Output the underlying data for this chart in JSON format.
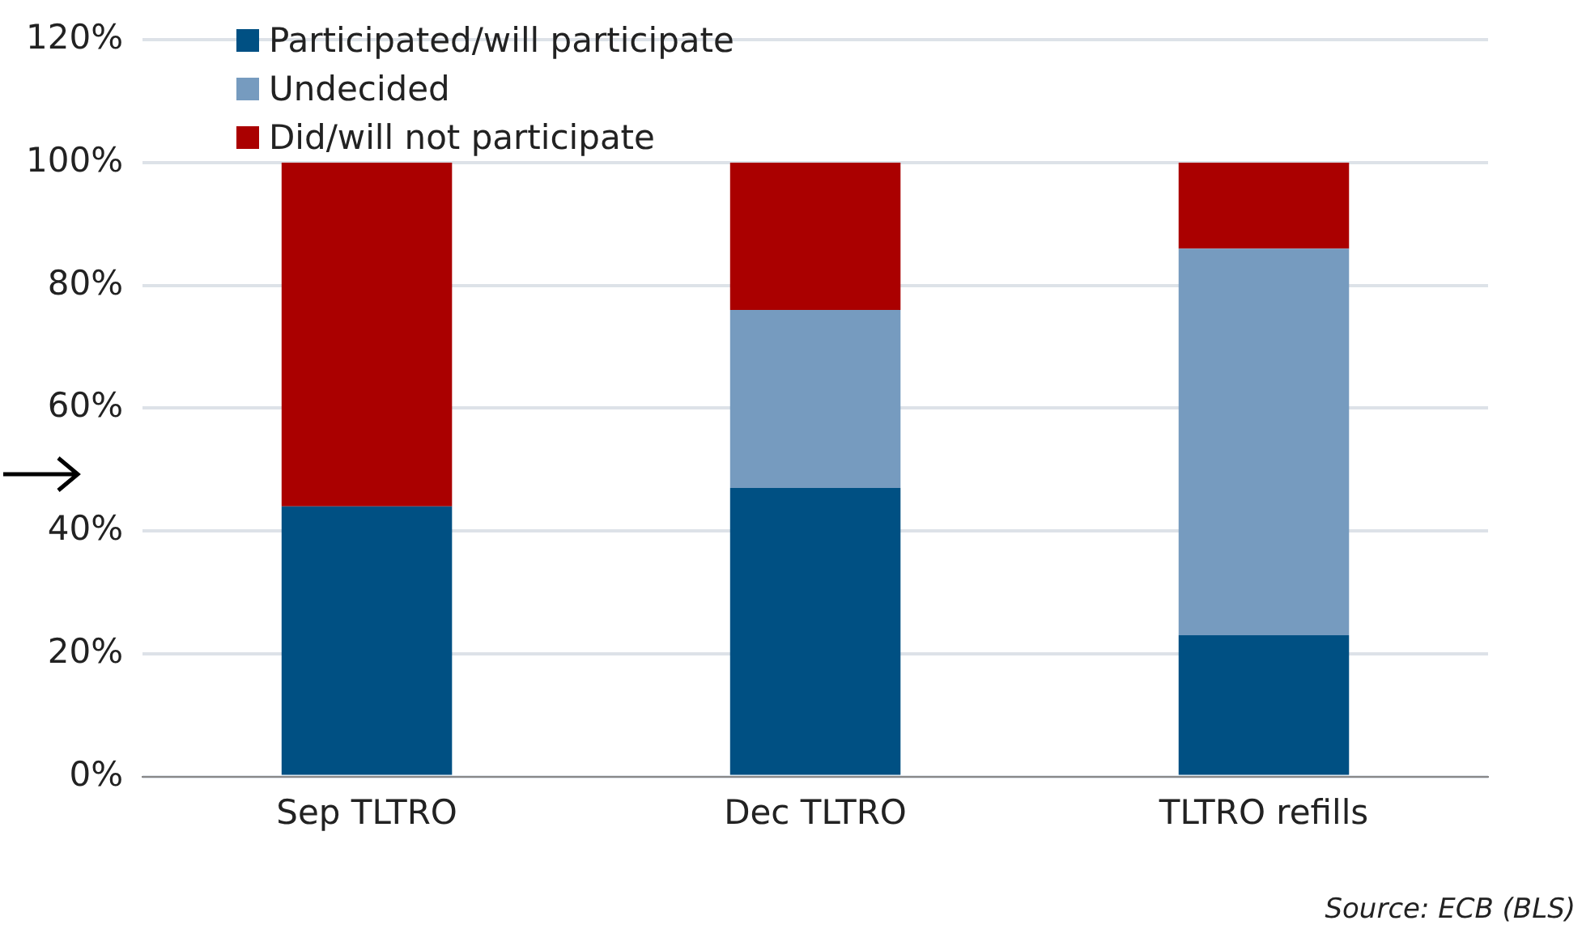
{
  "chart_data": {
    "type": "bar",
    "stacked": true,
    "categories": [
      "Sep TLTRO",
      "Dec TLTRO",
      "TLTRO refills"
    ],
    "series": [
      {
        "name": "Participated/will participate",
        "color": "#005083",
        "values": [
          44,
          47,
          23
        ]
      },
      {
        "name": "Undecided",
        "color": "#769bbf",
        "values": [
          0,
          29,
          63
        ]
      },
      {
        "name": "Did/will not participate",
        "color": "#aa0000",
        "values": [
          56,
          24,
          14
        ]
      }
    ],
    "ylim": [
      0,
      120
    ],
    "yticks": [
      {
        "value": 0,
        "label": "0%"
      },
      {
        "value": 20,
        "label": "20%"
      },
      {
        "value": 40,
        "label": "40%"
      },
      {
        "value": 60,
        "label": "60%"
      },
      {
        "value": 80,
        "label": "80%"
      },
      {
        "value": 100,
        "label": "100%"
      },
      {
        "value": 120,
        "label": "120%"
      }
    ],
    "grid": "y",
    "legend": "top left",
    "annotations": [
      "Source: ECB (BLS)"
    ]
  }
}
